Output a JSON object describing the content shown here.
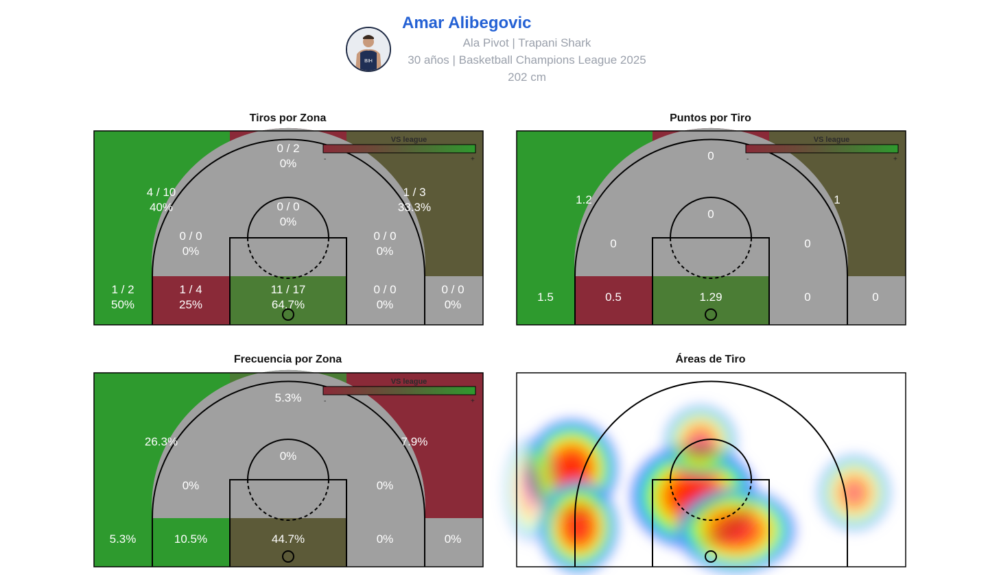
{
  "player": {
    "name": "Amar Alibegovic",
    "line1": "Ala Pivot | Trapani Shark",
    "line2": "30 años | Basketball Champions League 2025",
    "line3": "202 cm",
    "jersey_text": "BIH"
  },
  "legend": {
    "label": "VS league",
    "minus": "-",
    "plus": "+"
  },
  "colors": {
    "good": "#2e9a2e",
    "neutral_good": "#4b7d35",
    "neutral": "#5c5a38",
    "bad": "#8a2a38",
    "gray": "#a0a0a0",
    "legend_gradient": [
      "#8a2a38",
      "#5c5a38",
      "#2e9a2e"
    ]
  },
  "chart_data": [
    {
      "type": "heatmap",
      "title": "Tiros por Zona",
      "zones": [
        {
          "zone": "left-wing-three",
          "line1": "4 / 10",
          "line2": "40%",
          "color": "good"
        },
        {
          "zone": "top-three",
          "line1": "0 / 2",
          "line2": "0%",
          "color": "bad"
        },
        {
          "zone": "right-wing-three",
          "line1": "1 / 3",
          "line2": "33.3%",
          "color": "neutral"
        },
        {
          "zone": "top-key",
          "line1": "0 / 0",
          "line2": "0%",
          "color": "gray"
        },
        {
          "zone": "left-elbow",
          "line1": "0 / 0",
          "line2": "0%",
          "color": "gray"
        },
        {
          "zone": "right-elbow",
          "line1": "0 / 0",
          "line2": "0%",
          "color": "gray"
        },
        {
          "zone": "left-corner-three",
          "line1": "1 / 2",
          "line2": "50%",
          "color": "good"
        },
        {
          "zone": "left-baseline-mid",
          "line1": "1 / 4",
          "line2": "25%",
          "color": "bad"
        },
        {
          "zone": "paint",
          "line1": "11 / 17",
          "line2": "64.7%",
          "color": "neutral_good"
        },
        {
          "zone": "right-baseline-mid",
          "line1": "0 / 0",
          "line2": "0%",
          "color": "gray"
        },
        {
          "zone": "right-corner-three",
          "line1": "0 / 0",
          "line2": "0%",
          "color": "gray"
        }
      ]
    },
    {
      "type": "heatmap",
      "title": "Puntos por Tiro",
      "zones": [
        {
          "zone": "left-wing-three",
          "line1": "1.2",
          "line2": "",
          "color": "good"
        },
        {
          "zone": "top-three",
          "line1": "0",
          "line2": "",
          "color": "bad"
        },
        {
          "zone": "right-wing-three",
          "line1": "1",
          "line2": "",
          "color": "neutral"
        },
        {
          "zone": "top-key",
          "line1": "0",
          "line2": "",
          "color": "gray"
        },
        {
          "zone": "left-elbow",
          "line1": "0",
          "line2": "",
          "color": "gray"
        },
        {
          "zone": "right-elbow",
          "line1": "0",
          "line2": "",
          "color": "gray"
        },
        {
          "zone": "left-corner-three",
          "line1": "1.5",
          "line2": "",
          "color": "good"
        },
        {
          "zone": "left-baseline-mid",
          "line1": "0.5",
          "line2": "",
          "color": "bad"
        },
        {
          "zone": "paint",
          "line1": "1.29",
          "line2": "",
          "color": "neutral_good"
        },
        {
          "zone": "right-baseline-mid",
          "line1": "0",
          "line2": "",
          "color": "gray"
        },
        {
          "zone": "right-corner-three",
          "line1": "0",
          "line2": "",
          "color": "gray"
        }
      ]
    },
    {
      "type": "heatmap",
      "title": "Frecuencia por Zona",
      "zones": [
        {
          "zone": "left-wing-three",
          "line1": "26.3%",
          "line2": "",
          "color": "good"
        },
        {
          "zone": "top-three",
          "line1": "5.3%",
          "line2": "",
          "color": "neutral_good"
        },
        {
          "zone": "right-wing-three",
          "line1": "7.9%",
          "line2": "",
          "color": "bad"
        },
        {
          "zone": "top-key",
          "line1": "0%",
          "line2": "",
          "color": "gray"
        },
        {
          "zone": "left-elbow",
          "line1": "0%",
          "line2": "",
          "color": "gray"
        },
        {
          "zone": "right-elbow",
          "line1": "0%",
          "line2": "",
          "color": "gray"
        },
        {
          "zone": "left-corner-three",
          "line1": "5.3%",
          "line2": "",
          "color": "good"
        },
        {
          "zone": "left-baseline-mid",
          "line1": "10.5%",
          "line2": "",
          "color": "good"
        },
        {
          "zone": "paint",
          "line1": "44.7%",
          "line2": "",
          "color": "neutral"
        },
        {
          "zone": "right-baseline-mid",
          "line1": "0%",
          "line2": "",
          "color": "gray"
        },
        {
          "zone": "right-corner-three",
          "line1": "0%",
          "line2": "",
          "color": "gray"
        }
      ]
    },
    {
      "type": "heatmap",
      "title": "Áreas de Tiro",
      "density_hotspots": [
        {
          "area": "left wing, upper",
          "intensity": 0.95
        },
        {
          "area": "left wing, lower",
          "intensity": 0.9
        },
        {
          "area": "paint / restricted area",
          "intensity": 1.0
        },
        {
          "area": "paint, right side",
          "intensity": 0.85
        },
        {
          "area": "top of key",
          "intensity": 0.6
        },
        {
          "area": "right wing three",
          "intensity": 0.55
        },
        {
          "area": "left sideline",
          "intensity": 0.35
        }
      ]
    }
  ]
}
